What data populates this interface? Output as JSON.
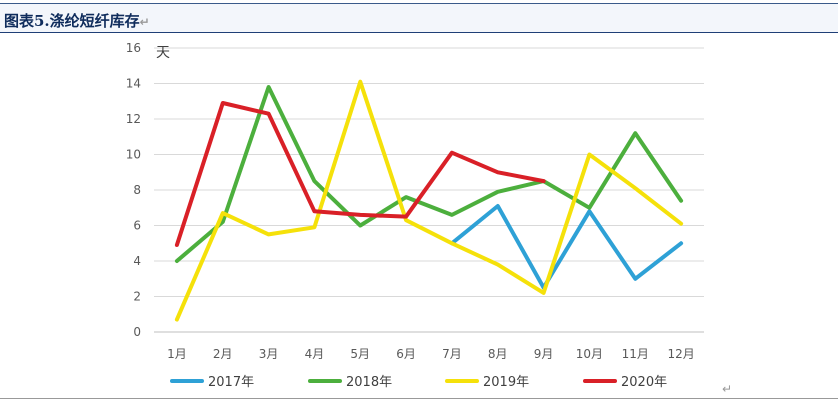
{
  "header": {
    "title": "图表5.涤纶短纤库存",
    "return_mark": "↵"
  },
  "chart_data": {
    "type": "line",
    "title": "",
    "ylabel": "天",
    "xlabel": "",
    "ylim": [
      0,
      16
    ],
    "yticks": [
      0,
      2,
      4,
      6,
      8,
      10,
      12,
      14,
      16
    ],
    "categories": [
      "1月",
      "2月",
      "3月",
      "4月",
      "5月",
      "6月",
      "7月",
      "8月",
      "9月",
      "10月",
      "11月",
      "12月"
    ],
    "grid": true,
    "legend_position": "bottom",
    "series": [
      {
        "name": "2017年",
        "color": "#2ea1d6",
        "values": [
          null,
          null,
          null,
          null,
          null,
          null,
          5.0,
          7.1,
          2.5,
          6.8,
          3.0,
          5.0
        ]
      },
      {
        "name": "2018年",
        "color": "#4caf3d",
        "values": [
          4.0,
          6.2,
          13.8,
          8.5,
          6.0,
          7.6,
          6.6,
          7.9,
          8.5,
          7.0,
          11.2,
          7.4
        ]
      },
      {
        "name": "2019年",
        "color": "#f5e10a",
        "values": [
          0.7,
          6.7,
          5.5,
          5.9,
          14.1,
          6.3,
          5.0,
          3.8,
          2.2,
          10.0,
          8.1,
          6.1
        ]
      },
      {
        "name": "2020年",
        "color": "#d92027",
        "values": [
          4.9,
          12.9,
          12.3,
          6.8,
          6.6,
          6.5,
          10.1,
          9.0,
          8.5,
          null,
          null,
          null
        ]
      }
    ]
  }
}
